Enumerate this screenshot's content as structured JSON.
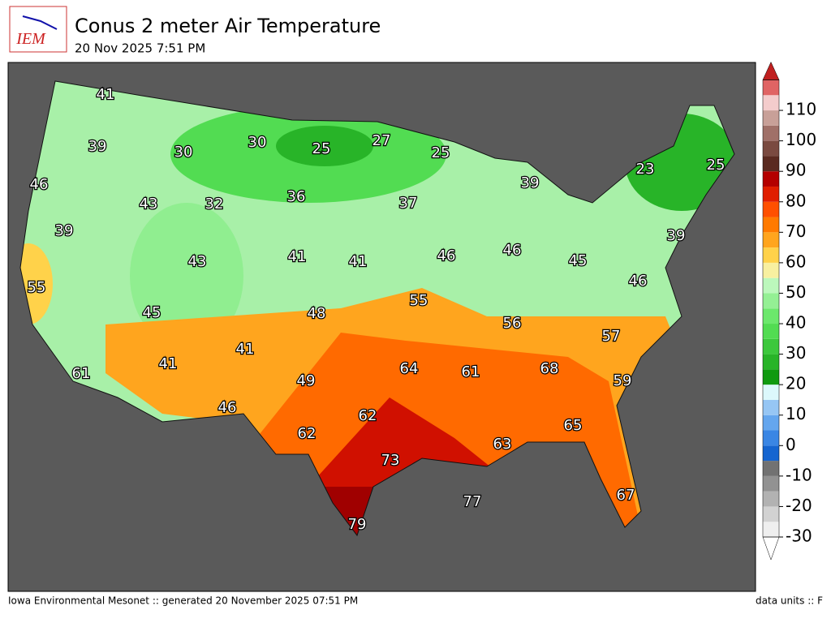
{
  "header": {
    "logo_text": "IEM",
    "title": "Conus 2 meter Air Temperature",
    "subtitle": "20 Nov 2025 7:51 PM"
  },
  "footer": {
    "left": "Iowa Environmental Mesonet :: generated 20 November 2025 07:51 PM",
    "right": "data units :: F"
  },
  "map": {
    "temperature_labels": [
      41,
      39,
      30,
      30,
      25,
      27,
      25,
      46,
      43,
      32,
      36,
      37,
      39,
      23,
      25,
      39,
      43,
      41,
      41,
      46,
      46,
      45,
      39,
      55,
      46,
      45,
      48,
      55,
      56,
      57,
      41,
      41,
      61,
      49,
      64,
      61,
      68,
      59,
      46,
      62,
      62,
      65,
      63,
      73,
      77,
      67,
      79
    ]
  },
  "colorbar": {
    "lim": [
      -30,
      120
    ],
    "ticks": [
      -30,
      -20,
      -10,
      0,
      10,
      20,
      30,
      40,
      50,
      60,
      70,
      80,
      90,
      100,
      110
    ],
    "colors": [
      "#efefef",
      "#d2d2d2",
      "#b2b2b2",
      "#929292",
      "#727272",
      "#1565d0",
      "#3a86e4",
      "#64a6ee",
      "#96c6f4",
      "#dcf8fc",
      "#109a10",
      "#28b428",
      "#3cc83c",
      "#52dc52",
      "#6ce86c",
      "#94f094",
      "#bcf8bc",
      "#f8f0a0",
      "#ffd24a",
      "#ffa51e",
      "#ff7a00",
      "#ff5000",
      "#e01e00",
      "#b40000",
      "#5a2a20",
      "#7a4a40",
      "#a07068",
      "#c8a098",
      "#f4cccc",
      "#e06464"
    ]
  }
}
